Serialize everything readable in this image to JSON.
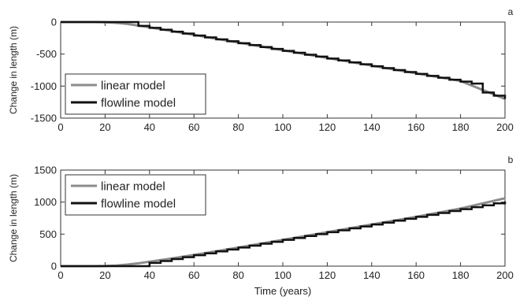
{
  "chart_data": [
    {
      "type": "line",
      "panel_label": "a",
      "xlabel": "",
      "ylabel": "Change in length (m)",
      "xlim": [
        0,
        200
      ],
      "ylim": [
        -1500,
        0
      ],
      "x_ticks": [
        0,
        20,
        40,
        60,
        80,
        100,
        120,
        140,
        160,
        180,
        200
      ],
      "y_ticks": [
        0,
        -500,
        -1000,
        -1500
      ],
      "legend_placement": "lower-left",
      "series": [
        {
          "name": "linear model",
          "color": "#8c8c8c",
          "style": "smooth",
          "x": [
            0,
            15,
            20,
            25,
            30,
            35,
            40,
            50,
            60,
            80,
            100,
            120,
            140,
            160,
            180,
            200
          ],
          "y": [
            0,
            0,
            -3,
            -12,
            -30,
            -55,
            -82,
            -140,
            -200,
            -320,
            -440,
            -560,
            -680,
            -800,
            -920,
            -1200
          ]
        },
        {
          "name": "flowline model",
          "color": "#111111",
          "style": "step",
          "x": [
            0,
            30,
            35,
            40,
            45,
            50,
            55,
            60,
            65,
            70,
            75,
            80,
            85,
            90,
            95,
            100,
            105,
            110,
            115,
            120,
            125,
            130,
            135,
            140,
            145,
            150,
            155,
            160,
            165,
            170,
            175,
            180,
            185,
            190,
            195,
            200
          ],
          "y": [
            0,
            0,
            -60,
            -90,
            -120,
            -150,
            -180,
            -210,
            -240,
            -270,
            -300,
            -330,
            -360,
            -390,
            -420,
            -450,
            -480,
            -510,
            -540,
            -570,
            -600,
            -630,
            -660,
            -690,
            -720,
            -750,
            -780,
            -810,
            -840,
            -870,
            -900,
            -930,
            -960,
            -1100,
            -1150,
            -1200
          ]
        }
      ]
    },
    {
      "type": "line",
      "panel_label": "b",
      "xlabel": "Time (years)",
      "ylabel": "Change in length (m)",
      "xlim": [
        0,
        200
      ],
      "ylim": [
        0,
        1500
      ],
      "x_ticks": [
        0,
        20,
        40,
        60,
        80,
        100,
        120,
        140,
        160,
        180,
        200
      ],
      "y_ticks": [
        0,
        500,
        1000,
        1500
      ],
      "legend_placement": "upper-left",
      "series": [
        {
          "name": "linear model",
          "color": "#8c8c8c",
          "style": "smooth",
          "x": [
            0,
            15,
            20,
            25,
            30,
            35,
            40,
            50,
            60,
            80,
            100,
            120,
            140,
            160,
            180,
            200
          ],
          "y": [
            0,
            0,
            3,
            10,
            25,
            45,
            70,
            120,
            175,
            290,
            410,
            530,
            650,
            770,
            900,
            1060
          ]
        },
        {
          "name": "flowline model",
          "color": "#111111",
          "style": "step",
          "x": [
            0,
            35,
            40,
            45,
            50,
            55,
            60,
            65,
            70,
            75,
            80,
            85,
            90,
            95,
            100,
            105,
            110,
            115,
            120,
            125,
            130,
            135,
            140,
            145,
            150,
            155,
            160,
            165,
            170,
            175,
            180,
            185,
            190,
            195,
            200
          ],
          "y": [
            0,
            0,
            50,
            80,
            110,
            140,
            170,
            200,
            230,
            260,
            290,
            320,
            350,
            380,
            410,
            440,
            470,
            500,
            530,
            560,
            590,
            620,
            650,
            680,
            710,
            740,
            770,
            800,
            830,
            860,
            890,
            920,
            950,
            980,
            1010
          ]
        }
      ]
    }
  ]
}
